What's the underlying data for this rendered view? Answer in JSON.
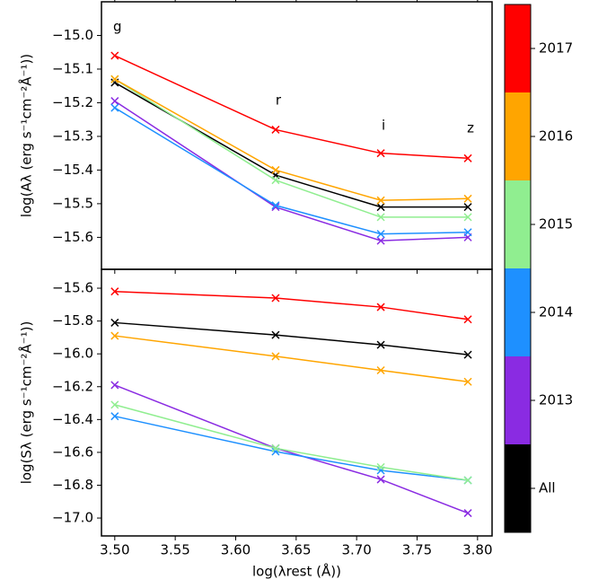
{
  "chart_data": [
    {
      "type": "line",
      "ylabel": "log(Aλ (erg s⁻¹cm⁻²Å⁻¹))",
      "annotations": [
        "g",
        "r",
        "i",
        "z"
      ],
      "x": [
        3.5,
        3.633,
        3.72,
        3.792
      ],
      "xlim": [
        3.489,
        3.812
      ],
      "ylim": [
        -15.695,
        -14.9
      ],
      "yticks": [
        {
          "value": -15.0,
          "label": "−15.0"
        },
        {
          "value": -15.1,
          "label": "−15.1"
        },
        {
          "value": -15.2,
          "label": "−15.2"
        },
        {
          "value": -15.3,
          "label": "−15.3"
        },
        {
          "value": -15.4,
          "label": "−15.4"
        },
        {
          "value": -15.5,
          "label": "−15.5"
        },
        {
          "value": -15.6,
          "label": "−15.6"
        }
      ],
      "series": [
        {
          "name": "All",
          "color": "#000000",
          "values": [
            -15.14,
            -15.415,
            -15.51,
            -15.51
          ]
        },
        {
          "name": "2013",
          "color": "#8a2be2",
          "values": [
            -15.195,
            -15.51,
            -15.61,
            -15.6
          ]
        },
        {
          "name": "2014",
          "color": "#1e90ff",
          "values": [
            -15.215,
            -15.505,
            -15.59,
            -15.585
          ]
        },
        {
          "name": "2015",
          "color": "#90ee90",
          "values": [
            -15.13,
            -15.43,
            -15.54,
            -15.54
          ]
        },
        {
          "name": "2016",
          "color": "#ffa500",
          "values": [
            -15.13,
            -15.4,
            -15.49,
            -15.485
          ]
        },
        {
          "name": "2017",
          "color": "#ff0000",
          "values": [
            -15.06,
            -15.28,
            -15.35,
            -15.365
          ]
        }
      ]
    },
    {
      "type": "line",
      "ylabel": "log(Sλ (erg s⁻¹cm⁻²Å⁻¹))",
      "xlabel": "log(λrest (Å))",
      "x": [
        3.5,
        3.633,
        3.72,
        3.792
      ],
      "xlim": [
        3.489,
        3.812
      ],
      "xticks": [
        {
          "value": 3.5,
          "label": "3.50"
        },
        3.55,
        {
          "value": 3.6,
          "label": "3.60"
        },
        3.65,
        {
          "value": 3.7,
          "label": "3.70"
        },
        3.75,
        {
          "value": 3.8,
          "label": "3.80"
        }
      ],
      "ylim": [
        -17.109,
        -15.485
      ],
      "yticks": [
        {
          "value": -15.6,
          "label": "−15.6"
        },
        {
          "value": -15.8,
          "label": "−15.8"
        },
        {
          "value": -16.0,
          "label": "−16.0"
        },
        {
          "value": -16.2,
          "label": "−16.2"
        },
        {
          "value": -16.4,
          "label": "−16.4"
        },
        {
          "value": -16.6,
          "label": "−16.6"
        },
        {
          "value": -16.8,
          "label": "−16.8"
        },
        {
          "value": -17.0,
          "label": "−17.0"
        }
      ],
      "series": [
        {
          "name": "All",
          "color": "#000000",
          "values": [
            -15.81,
            -15.885,
            -15.945,
            -16.005
          ]
        },
        {
          "name": "2013",
          "color": "#8a2be2",
          "values": [
            -16.19,
            -16.575,
            -16.765,
            -16.97
          ]
        },
        {
          "name": "2014",
          "color": "#1e90ff",
          "values": [
            -16.38,
            -16.595,
            -16.71,
            -16.77
          ]
        },
        {
          "name": "2015",
          "color": "#90ee90",
          "values": [
            -16.31,
            -16.575,
            -16.69,
            -16.77
          ]
        },
        {
          "name": "2016",
          "color": "#ffa500",
          "values": [
            -15.89,
            -16.015,
            -16.1,
            -16.17
          ]
        },
        {
          "name": "2017",
          "color": "#ff0000",
          "values": [
            -15.62,
            -15.66,
            -15.715,
            -15.79
          ]
        }
      ]
    }
  ]
}
